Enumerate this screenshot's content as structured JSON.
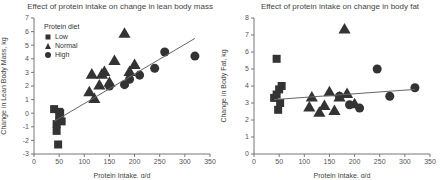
{
  "chart_data": [
    {
      "type": "scatter",
      "title": "Effect of protein intake on change in lean body mass",
      "x_label": "Protein Intake, g/d",
      "y_label": "Change in Lean Body Mass, kg",
      "xlim": [
        0,
        350
      ],
      "xticks": [
        0,
        50,
        100,
        150,
        200,
        250,
        300,
        350
      ],
      "ylim": [
        -3,
        7
      ],
      "yticks": [
        -3,
        -2,
        -1,
        0,
        1,
        2,
        3,
        4,
        5,
        6,
        7
      ],
      "legend": "upper left",
      "legend_title": "Protein diet",
      "series": [
        {
          "name": "Low",
          "color": "#333333",
          "marker": "square",
          "x": [
            40,
            45,
            48,
            50,
            52,
            55,
            45,
            50
          ],
          "y": [
            0.3,
            -1.3,
            -2.3,
            -0.5,
            0,
            -0.6,
            -0.8,
            0.1
          ]
        },
        {
          "name": "Normal",
          "color": "#333333",
          "marker": "triangle",
          "x": [
            110,
            115,
            120,
            130,
            135,
            140,
            150,
            160,
            180,
            190,
            200
          ],
          "y": [
            1.5,
            2.8,
            1.0,
            2.0,
            2.8,
            3.0,
            2.2,
            3.8,
            5.8,
            3.0,
            3.5
          ]
        },
        {
          "name": "High",
          "color": "#333333",
          "marker": "circle",
          "x": [
            150,
            180,
            190,
            210,
            240,
            260,
            320
          ],
          "y": [
            2.0,
            2.1,
            2.5,
            2.8,
            3.3,
            4.5,
            4.2
          ]
        }
      ],
      "trendline": {
        "color": "#666666",
        "x": [
          40,
          320
        ],
        "y": [
          -0.6,
          5.5
        ]
      }
    },
    {
      "type": "scatter",
      "title": "Effect of protein intake on change in body fat",
      "x_label": "Protein Intake, g/d",
      "y_label": "Change in Body Fat, kg",
      "xlim": [
        0,
        350
      ],
      "xticks": [
        0,
        50,
        100,
        150,
        200,
        250,
        300,
        350
      ],
      "ylim": [
        0,
        8
      ],
      "yticks": [
        0,
        1,
        2,
        3,
        4,
        5,
        6,
        7,
        8
      ],
      "series": [
        {
          "name": "Low",
          "color": "#333333",
          "marker": "square",
          "x": [
            40,
            45,
            48,
            50,
            52,
            55,
            45
          ],
          "y": [
            3.3,
            5.6,
            2.6,
            3.8,
            3.0,
            4.0,
            3.5
          ]
        },
        {
          "name": "Normal",
          "color": "#333333",
          "marker": "triangle",
          "x": [
            110,
            115,
            130,
            140,
            150,
            160,
            170,
            180,
            185,
            200
          ],
          "y": [
            2.7,
            3.3,
            2.4,
            2.8,
            3.6,
            2.5,
            3.3,
            7.3,
            3.5,
            2.9
          ]
        },
        {
          "name": "High",
          "color": "#333333",
          "marker": "circle",
          "x": [
            170,
            190,
            210,
            245,
            270,
            320
          ],
          "y": [
            3.4,
            2.9,
            2.7,
            5.0,
            3.4,
            3.9
          ]
        }
      ],
      "trendline": {
        "color": "#666666",
        "x": [
          40,
          320
        ],
        "y": [
          3.2,
          3.8
        ]
      }
    }
  ]
}
